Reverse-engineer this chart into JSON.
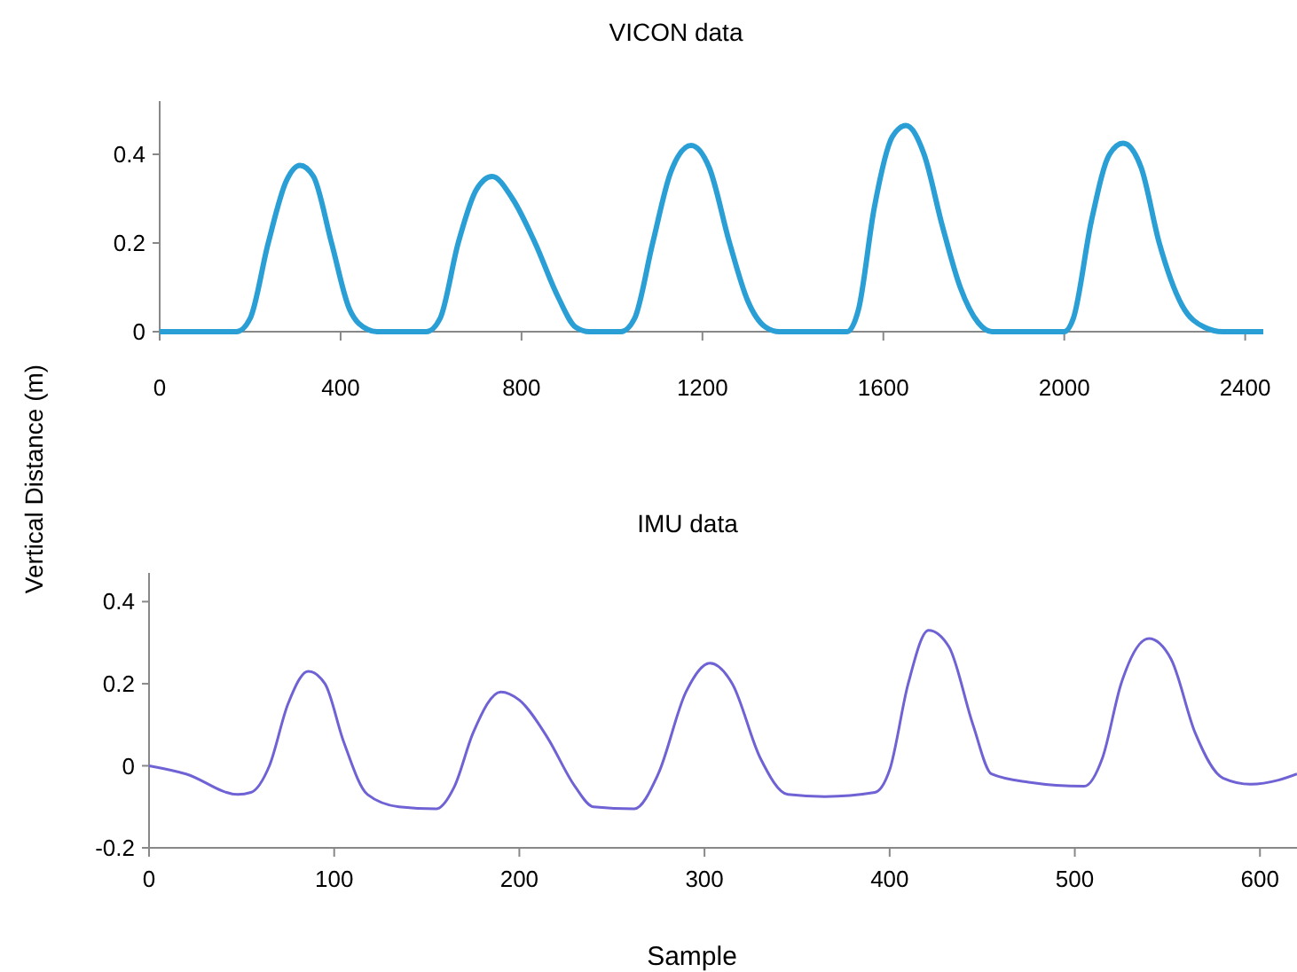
{
  "chart_data": [
    {
      "type": "line",
      "title": "VICON data",
      "ylabel": "Vertical Distance (m)",
      "xlim": [
        0,
        2440
      ],
      "xticks": [
        0,
        400,
        800,
        1200,
        1600,
        2000,
        2400
      ],
      "ylim": [
        0,
        0.52
      ],
      "yticks": [
        0,
        0.2,
        0.4
      ],
      "grid": false,
      "marker": "none",
      "line_style": "solid",
      "series": [
        {
          "color": "#2a9fd6",
          "x": [
            0,
            170,
            200,
            240,
            280,
            310,
            340,
            380,
            420,
            460,
            480,
            590,
            620,
            660,
            700,
            735,
            780,
            830,
            880,
            920,
            950,
            1020,
            1050,
            1090,
            1130,
            1175,
            1215,
            1260,
            1300,
            1340,
            1370,
            1520,
            1545,
            1580,
            1620,
            1650,
            1690,
            1730,
            1770,
            1810,
            1840,
            2000,
            2020,
            2060,
            2100,
            2130,
            2170,
            2210,
            2260,
            2310,
            2350,
            2440
          ],
          "values": [
            0,
            0,
            0.03,
            0.2,
            0.34,
            0.375,
            0.35,
            0.2,
            0.05,
            0.005,
            0,
            0,
            0.03,
            0.2,
            0.32,
            0.35,
            0.3,
            0.2,
            0.08,
            0.01,
            0,
            0,
            0.03,
            0.2,
            0.36,
            0.42,
            0.37,
            0.2,
            0.07,
            0.01,
            0,
            0,
            0.05,
            0.28,
            0.44,
            0.465,
            0.4,
            0.24,
            0.1,
            0.02,
            0,
            0,
            0.03,
            0.25,
            0.4,
            0.425,
            0.37,
            0.2,
            0.06,
            0.01,
            0,
            0
          ]
        }
      ]
    },
    {
      "type": "line",
      "title": "IMU data",
      "xlabel": "Sample",
      "xlim": [
        0,
        620
      ],
      "xticks": [
        0,
        100,
        200,
        300,
        400,
        500,
        600
      ],
      "ylim": [
        -0.2,
        0.47
      ],
      "yticks": [
        -0.2,
        0,
        0.2,
        0.4
      ],
      "grid": false,
      "marker": "none",
      "line_style": "solid",
      "series": [
        {
          "color": "#6f62d4",
          "x": [
            0,
            20,
            48,
            55,
            65,
            75,
            86,
            95,
            105,
            118,
            135,
            155,
            165,
            175,
            190,
            200,
            215,
            230,
            240,
            262,
            275,
            290,
            303,
            315,
            330,
            345,
            365,
            392,
            400,
            410,
            421,
            432,
            445,
            455,
            475,
            505,
            515,
            525,
            540,
            552,
            565,
            580,
            595,
            610,
            620
          ],
          "values": [
            0,
            -0.02,
            -0.07,
            -0.065,
            0,
            0.15,
            0.23,
            0.2,
            0.06,
            -0.07,
            -0.1,
            -0.105,
            -0.05,
            0.08,
            0.18,
            0.16,
            0.07,
            -0.05,
            -0.1,
            -0.105,
            -0.02,
            0.18,
            0.25,
            0.2,
            0.02,
            -0.07,
            -0.075,
            -0.065,
            -0.01,
            0.2,
            0.33,
            0.29,
            0.1,
            -0.02,
            -0.04,
            -0.05,
            0.02,
            0.2,
            0.31,
            0.26,
            0.08,
            -0.03,
            -0.045,
            -0.035,
            -0.02
          ]
        }
      ]
    }
  ]
}
